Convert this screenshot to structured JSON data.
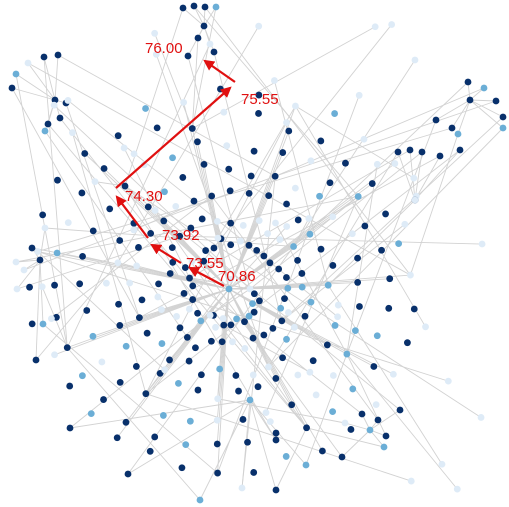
{
  "diagram": {
    "colors": {
      "edge": "#d2d2d2",
      "node_dark": "#08306b",
      "node_mid": "#6baed6",
      "node_light": "#deebf7",
      "path": "#e01010"
    },
    "path_labels": [
      "70.86",
      "73.55",
      "73.92",
      "74.30",
      "75.55",
      "76.00"
    ]
  }
}
